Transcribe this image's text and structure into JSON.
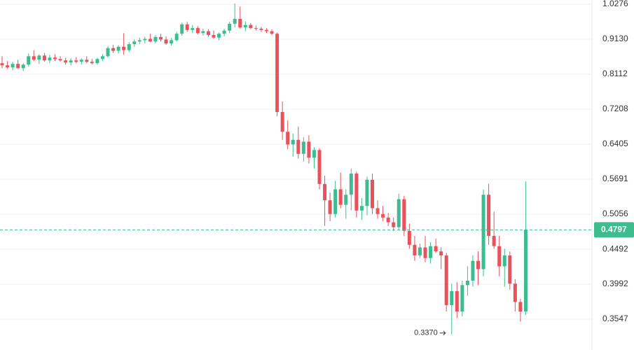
{
  "chart_data": {
    "type": "candlestick",
    "log_scale": true,
    "grid": true,
    "up_color": "#3dbd8f",
    "down_color": "#e8525c",
    "ylim": [
      0.3197,
      1.0423
    ],
    "yticks": [
      1.0276,
      {
        "value": 0.913,
        "label": "0.9130"
      },
      0.8112,
      0.7208,
      0.6405,
      0.5691,
      0.5056,
      0.4492,
      0.3992,
      0.3547
    ],
    "low_marker": {
      "index": 85,
      "value": 0.337,
      "label": "0.3370"
    },
    "open": [
      0.842,
      0.836,
      0.83,
      0.84,
      0.828,
      0.838,
      0.862,
      0.852,
      0.864,
      0.85,
      0.858,
      0.854,
      0.85,
      0.844,
      0.85,
      0.846,
      0.852,
      0.846,
      0.842,
      0.854,
      0.862,
      0.886,
      0.878,
      0.89,
      0.88,
      0.898,
      0.906,
      0.91,
      0.914,
      0.906,
      0.92,
      0.912,
      0.9,
      0.91,
      0.93,
      0.96,
      0.942,
      0.948,
      0.932,
      0.938,
      0.926,
      0.918,
      0.93,
      0.94,
      0.962,
      0.978,
      0.95,
      0.958,
      0.948,
      0.946,
      0.942,
      0.938,
      0.93,
      0.714,
      0.668,
      0.64,
      0.65,
      0.62,
      0.646,
      0.612,
      0.628,
      0.56,
      0.53,
      0.506,
      0.55,
      0.522,
      0.54,
      0.58,
      0.512,
      0.52,
      0.568,
      0.516,
      0.506,
      0.5,
      0.492,
      0.484,
      0.532,
      0.478,
      0.456,
      0.44,
      0.452,
      0.436,
      0.454,
      0.446,
      0.44,
      0.372,
      0.39,
      0.364,
      0.398,
      0.404,
      0.432,
      0.42,
      0.54,
      0.47,
      0.454,
      0.424,
      0.44,
      0.4,
      0.376,
      0.364
    ],
    "high": [
      0.862,
      0.848,
      0.846,
      0.852,
      0.842,
      0.87,
      0.88,
      0.868,
      0.872,
      0.866,
      0.868,
      0.862,
      0.858,
      0.856,
      0.86,
      0.856,
      0.862,
      0.854,
      0.858,
      0.868,
      0.892,
      0.896,
      0.894,
      0.932,
      0.904,
      0.912,
      0.918,
      0.92,
      0.93,
      0.926,
      0.93,
      0.922,
      0.916,
      0.936,
      0.966,
      0.968,
      0.958,
      0.954,
      0.946,
      0.944,
      0.94,
      0.934,
      0.946,
      0.968,
      1.03,
      1.02,
      0.97,
      0.964,
      0.956,
      0.952,
      0.948,
      0.944,
      0.934,
      0.74,
      0.694,
      0.664,
      0.68,
      0.656,
      0.66,
      0.634,
      0.632,
      0.576,
      0.544,
      0.566,
      0.582,
      0.55,
      0.59,
      0.584,
      0.534,
      0.574,
      0.58,
      0.53,
      0.52,
      0.508,
      0.5,
      0.542,
      0.538,
      0.49,
      0.47,
      0.458,
      0.47,
      0.46,
      0.466,
      0.452,
      0.444,
      0.4,
      0.402,
      0.404,
      0.424,
      0.44,
      0.446,
      0.55,
      0.56,
      0.51,
      0.47,
      0.45,
      0.446,
      0.406,
      0.38,
      0.565
    ],
    "low": [
      0.828,
      0.826,
      0.822,
      0.826,
      0.82,
      0.832,
      0.848,
      0.84,
      0.846,
      0.842,
      0.848,
      0.846,
      0.838,
      0.836,
      0.842,
      0.838,
      0.842,
      0.838,
      0.838,
      0.848,
      0.858,
      0.872,
      0.87,
      0.866,
      0.874,
      0.89,
      0.898,
      0.9,
      0.904,
      0.9,
      0.906,
      0.896,
      0.894,
      0.906,
      0.924,
      0.936,
      0.932,
      0.928,
      0.924,
      0.92,
      0.914,
      0.91,
      0.922,
      0.932,
      0.95,
      0.946,
      0.938,
      0.944,
      0.94,
      0.936,
      0.932,
      0.926,
      0.704,
      0.65,
      0.63,
      0.614,
      0.61,
      0.604,
      0.6,
      0.59,
      0.55,
      0.486,
      0.494,
      0.5,
      0.516,
      0.498,
      0.512,
      0.5,
      0.496,
      0.504,
      0.506,
      0.498,
      0.494,
      0.486,
      0.478,
      0.48,
      0.47,
      0.45,
      0.432,
      0.436,
      0.43,
      0.428,
      0.444,
      0.42,
      0.364,
      0.337,
      0.356,
      0.358,
      0.384,
      0.396,
      0.398,
      0.41,
      0.456,
      0.45,
      0.41,
      0.396,
      0.392,
      0.364,
      0.352,
      0.36
    ],
    "close": [
      0.836,
      0.83,
      0.84,
      0.828,
      0.838,
      0.862,
      0.852,
      0.864,
      0.85,
      0.858,
      0.854,
      0.85,
      0.844,
      0.85,
      0.846,
      0.852,
      0.846,
      0.842,
      0.854,
      0.862,
      0.886,
      0.878,
      0.89,
      0.88,
      0.898,
      0.906,
      0.91,
      0.914,
      0.906,
      0.92,
      0.912,
      0.9,
      0.91,
      0.93,
      0.96,
      0.942,
      0.948,
      0.932,
      0.938,
      0.926,
      0.918,
      0.93,
      0.94,
      0.962,
      0.978,
      0.95,
      0.958,
      0.948,
      0.946,
      0.942,
      0.938,
      0.93,
      0.714,
      0.668,
      0.64,
      0.65,
      0.62,
      0.646,
      0.612,
      0.628,
      0.56,
      0.53,
      0.506,
      0.55,
      0.522,
      0.54,
      0.58,
      0.512,
      0.52,
      0.568,
      0.516,
      0.506,
      0.5,
      0.492,
      0.484,
      0.532,
      0.478,
      0.456,
      0.44,
      0.452,
      0.436,
      0.454,
      0.446,
      0.44,
      0.372,
      0.39,
      0.364,
      0.398,
      0.404,
      0.432,
      0.42,
      0.54,
      0.47,
      0.454,
      0.424,
      0.44,
      0.4,
      0.376,
      0.364,
      0.4797
    ]
  }
}
